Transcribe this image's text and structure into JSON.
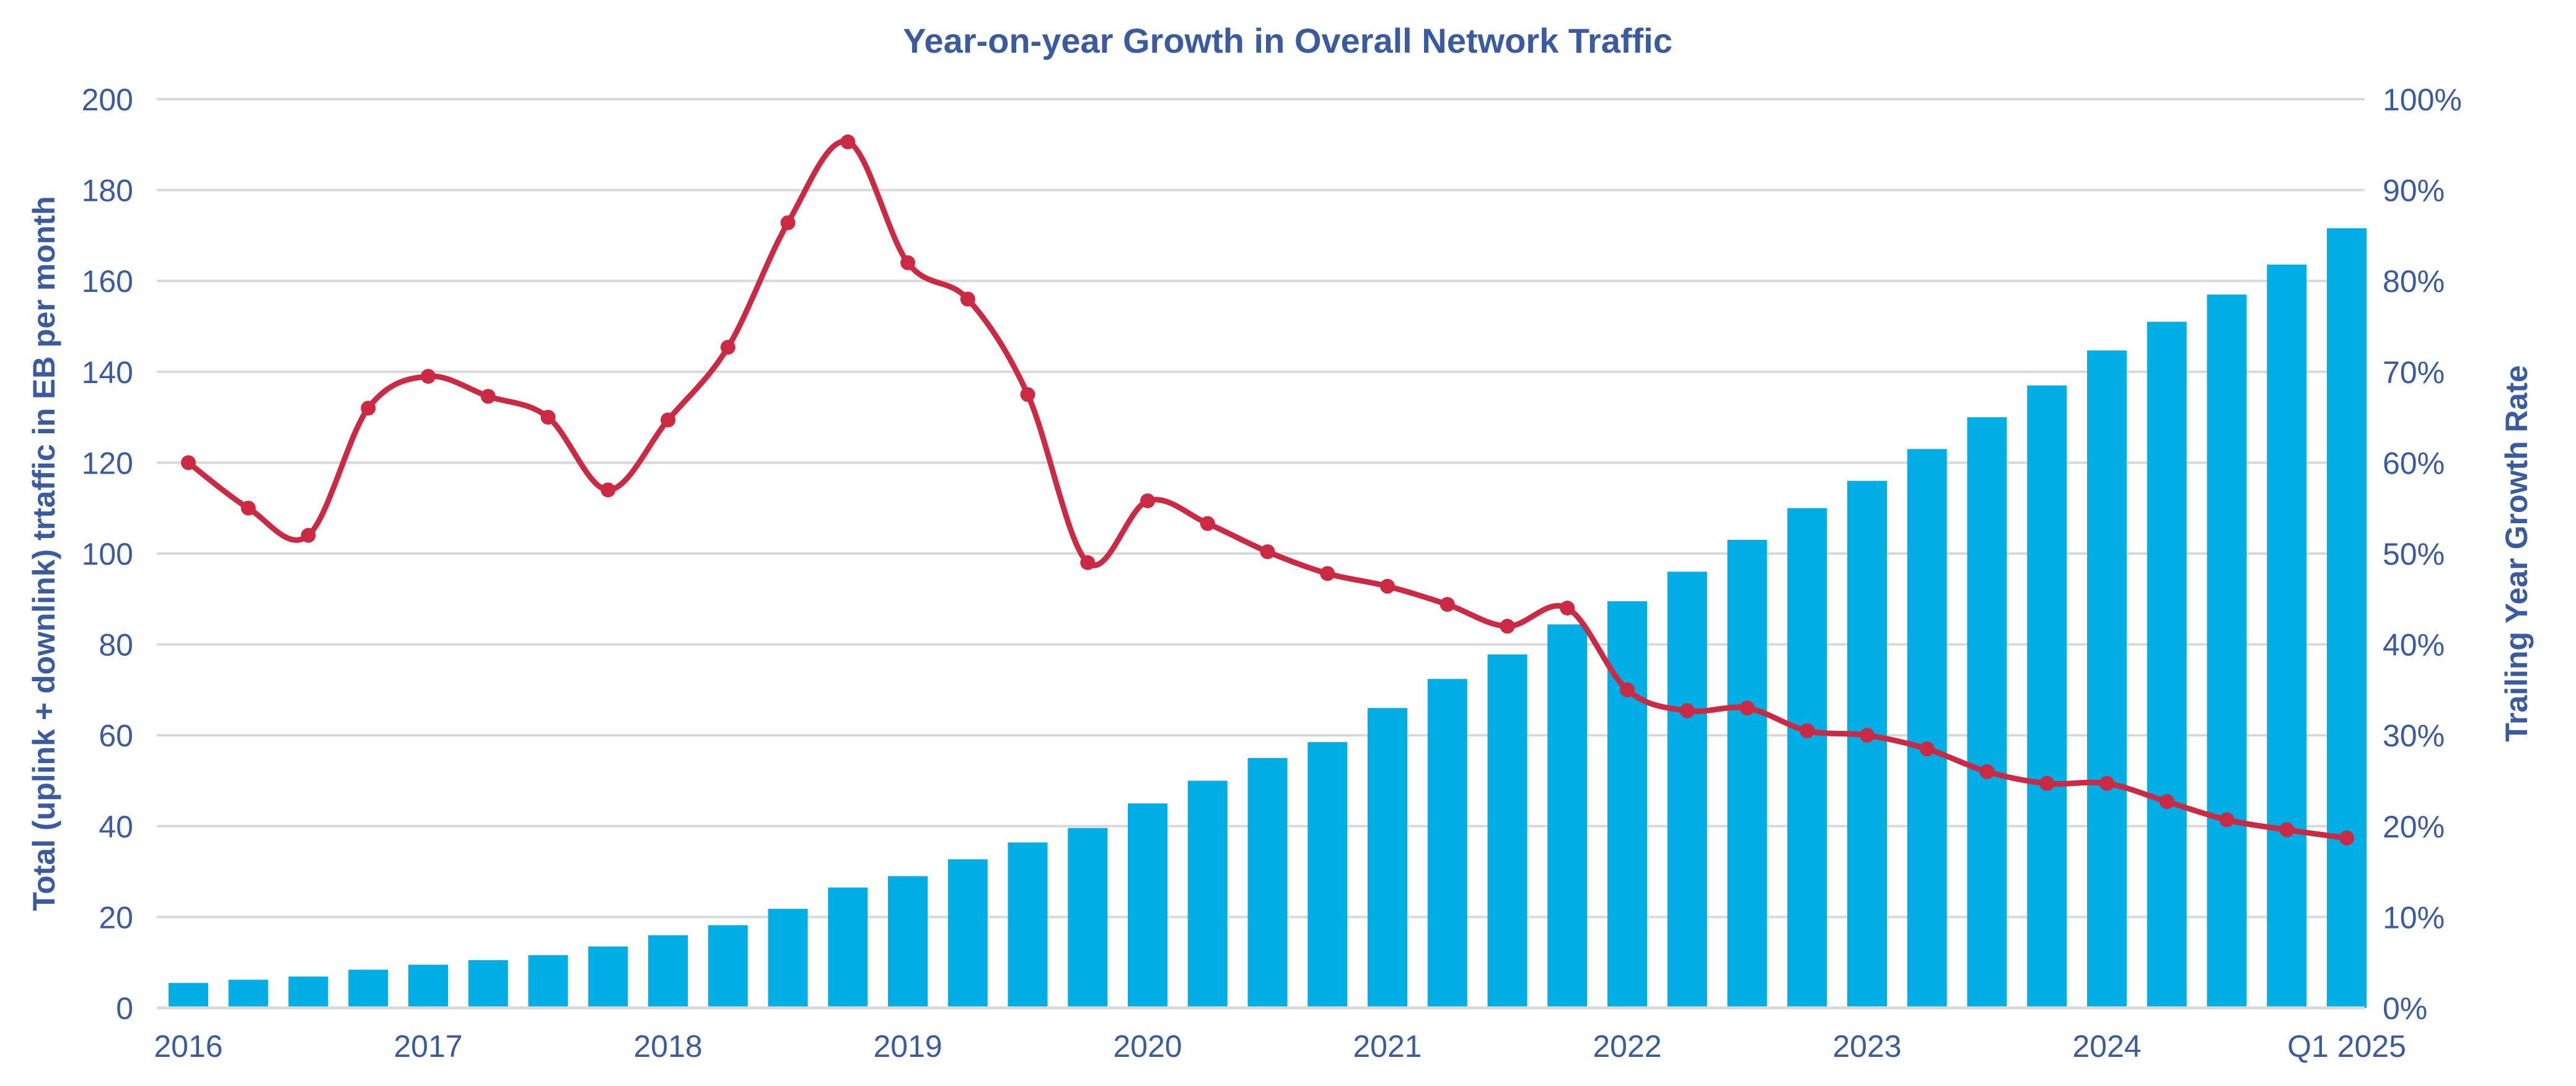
{
  "chart_data": {
    "type": "bar+line",
    "title": "Year-on-year Growth in Overall Network Traffic",
    "ylabel": "Total (uplink + downlink) trtaffic in EB per month",
    "y2label": "Trailing Year Growth Rate",
    "ylim": [
      0,
      200
    ],
    "y2lim": [
      0,
      100
    ],
    "yticks": [
      "0",
      "20",
      "40",
      "60",
      "80",
      "100",
      "120",
      "140",
      "160",
      "180",
      "200"
    ],
    "y2ticks": [
      "0%",
      "10%",
      "20%",
      "30%",
      "40%",
      "50%",
      "60%",
      "70%",
      "80%",
      "90%",
      "100%"
    ],
    "xtick_labels": [
      {
        "index": 0,
        "label": "2016"
      },
      {
        "index": 4,
        "label": "2017"
      },
      {
        "index": 8,
        "label": "2018"
      },
      {
        "index": 12,
        "label": "2019"
      },
      {
        "index": 16,
        "label": "2020"
      },
      {
        "index": 20,
        "label": "2021"
      },
      {
        "index": 24,
        "label": "2022"
      },
      {
        "index": 28,
        "label": "2023"
      },
      {
        "index": 32,
        "label": "2024"
      },
      {
        "index": 36,
        "label": "Q1 2025"
      }
    ],
    "grid": true,
    "colors": {
      "bars": "#00AEE6",
      "line": "#CC2944",
      "text": "#3A5BA0",
      "grid": "#D9D9D9"
    },
    "bars": [
      5.5,
      6.2,
      6.9,
      8.4,
      9.5,
      10.5,
      11.6,
      13.5,
      16,
      18.2,
      21.8,
      26.5,
      29,
      32.7,
      36.4,
      39.6,
      45,
      50,
      55,
      58.5,
      66,
      72.4,
      77.8,
      84.4,
      89.5,
      96,
      103,
      110,
      116,
      123,
      130,
      137,
      144.7,
      151,
      157,
      163.6,
      171.6
    ],
    "growth_pct": [
      60,
      55,
      52,
      66,
      69.5,
      67.3,
      65,
      57,
      64.7,
      72.7,
      86.4,
      95.3,
      82,
      78,
      67.5,
      49,
      55.8,
      53.3,
      50.2,
      47.8,
      46.4,
      44.4,
      42,
      44,
      35,
      32.7,
      33,
      30.5,
      30,
      28.5,
      26,
      24.7,
      24.7,
      22.7,
      20.7,
      19.6,
      18.7
    ]
  }
}
